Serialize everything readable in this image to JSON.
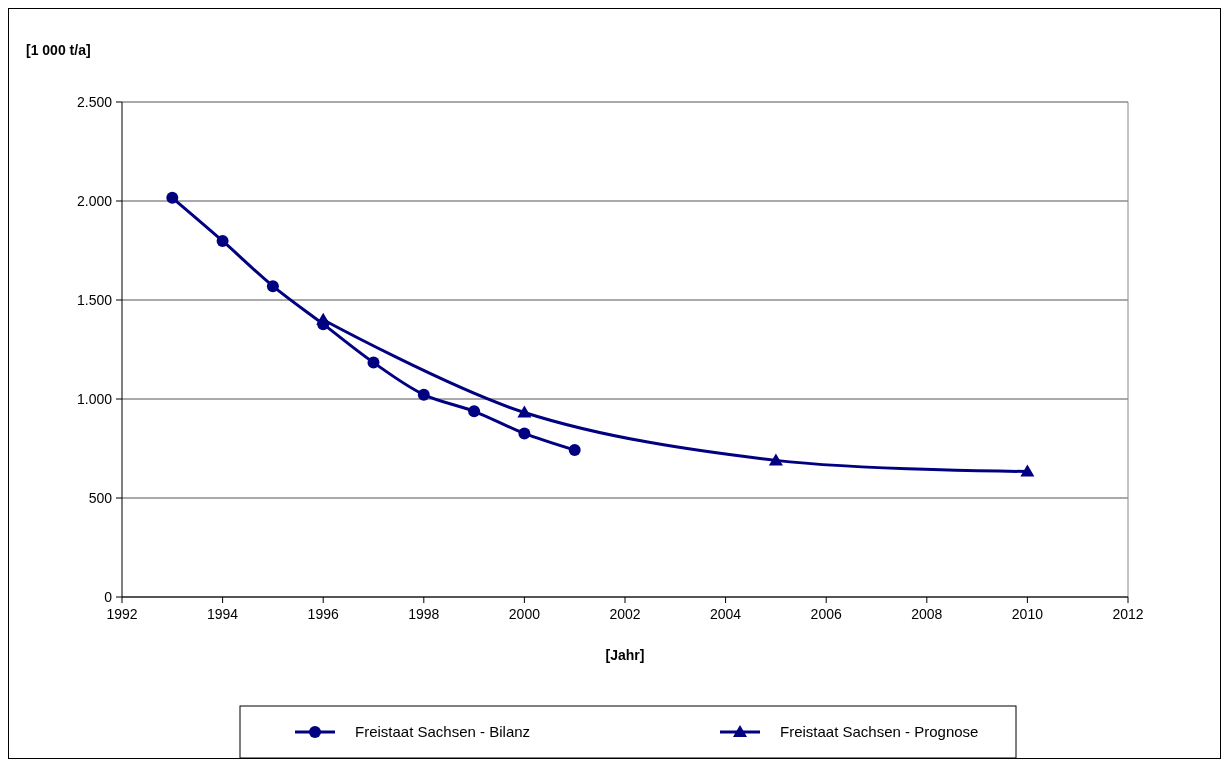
{
  "chart_data": {
    "type": "line",
    "ylabel": "[1 000 t/a]",
    "xlabel": "[Jahr]",
    "xlim": [
      1992,
      2012
    ],
    "xticks": [
      1992,
      1994,
      1996,
      1998,
      2000,
      2002,
      2004,
      2006,
      2008,
      2010,
      2012
    ],
    "ylim": [
      0,
      2500
    ],
    "yticks": [
      0,
      {
        "value": 500,
        "label": "500"
      },
      {
        "value": 1000,
        "label": "1.000"
      },
      {
        "value": 1500,
        "label": "1.500"
      },
      {
        "value": 2000,
        "label": "2.000"
      },
      {
        "value": 2500,
        "label": "2.500"
      }
    ],
    "grid": "y",
    "legend": "bottom",
    "line_style": "solid",
    "series": [
      {
        "name": "Freistaat Sachsen - Bilanz",
        "color": "#000080",
        "marker": "circle",
        "x": [
          1993,
          1994,
          1995,
          1996,
          1997,
          1998,
          1999,
          2000,
          2001
        ],
        "values": [
          2016,
          1798,
          1570,
          1378,
          1184,
          1022,
          938,
          826,
          742
        ]
      },
      {
        "name": "Freistaat Sachsen - Prognose",
        "color": "#000080",
        "marker": "triangle",
        "x": [
          1996,
          2000,
          2005,
          2010
        ],
        "values": [
          1400,
          932,
          690,
          634
        ]
      }
    ]
  }
}
